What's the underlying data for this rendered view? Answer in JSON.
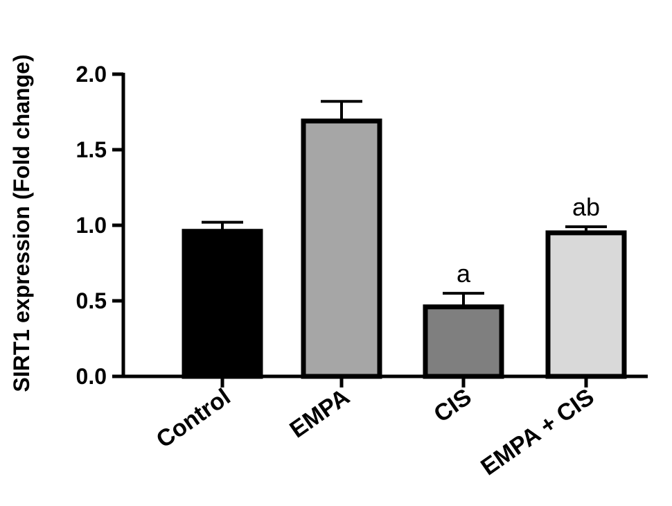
{
  "chart_data": {
    "type": "bar",
    "title": "",
    "xlabel": "",
    "ylabel": "SIRT1 expression (Fold change)",
    "ylim": [
      0,
      2.0
    ],
    "yticks": [
      "0.0",
      "0.5",
      "1.0",
      "1.5",
      "2.0"
    ],
    "categories": [
      "Control",
      "EMPA",
      "CIS",
      "EMPA + CIS"
    ],
    "values": [
      0.96,
      1.69,
      0.46,
      0.95
    ],
    "errors": [
      0.06,
      0.13,
      0.09,
      0.04
    ],
    "annotations": [
      "",
      "",
      "a",
      "ab"
    ],
    "colors": [
      "#000000",
      "#a6a6a6",
      "#7f7f7f",
      "#d9d9d9"
    ],
    "edge_color": "#000000",
    "grid": false,
    "legend": false
  }
}
